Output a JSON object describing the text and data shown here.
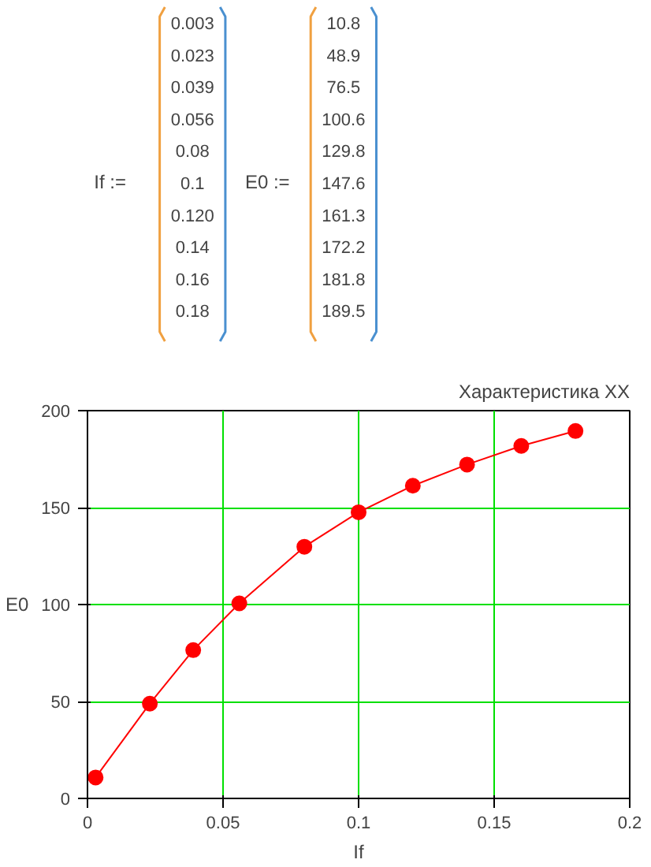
{
  "chart_data": {
    "type": "line",
    "title": "Характеристика XX",
    "xlabel": "If",
    "ylabel": "E0",
    "annotations": [
      "If :=",
      "0.003",
      "0.023",
      "0.039",
      "0.056",
      "0.08",
      "0.1",
      "0.120",
      "0.14",
      "0.16",
      "0.18",
      "E0 :=",
      "10.8",
      "48.9",
      "76.5",
      "100.6",
      "129.8",
      "147.6",
      "161.3",
      "172.2",
      "181.8",
      "189.5"
    ],
    "x": [
      0.003,
      0.023,
      0.039,
      0.056,
      0.08,
      0.1,
      0.12,
      0.14,
      0.16,
      0.18
    ],
    "series": [
      {
        "color": "#ff0000",
        "values": [
          10.8,
          48.9,
          76.5,
          100.6,
          129.8,
          147.6,
          161.3,
          172.2,
          181.8,
          189.5
        ]
      }
    ],
    "xlim": [
      0,
      0.2
    ],
    "xticks": [
      0,
      0.05,
      0.1,
      0.15,
      0.2
    ],
    "ylim": [
      0,
      200
    ],
    "yticks": [
      0,
      50,
      100,
      150,
      200
    ],
    "grid": true,
    "marker": "circle",
    "line_style": "solid"
  }
}
